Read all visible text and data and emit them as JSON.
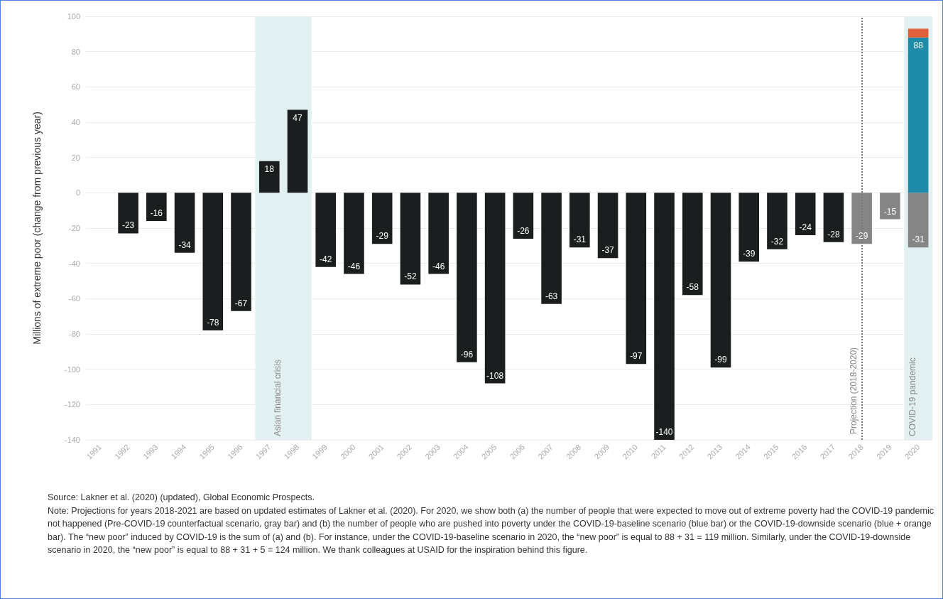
{
  "chart_data": {
    "type": "bar",
    "ylabel": "Millions of extreme poor (change from previous year)",
    "categories": [
      "1991",
      "1992",
      "1993",
      "1994",
      "1995",
      "1996",
      "1997",
      "1998",
      "1999",
      "2000",
      "2001",
      "2002",
      "2003",
      "2004",
      "2005",
      "2006",
      "2007",
      "2008",
      "2009",
      "2010",
      "2011",
      "2012",
      "2013",
      "2014",
      "2015",
      "2016",
      "2017",
      "2018",
      "2019",
      "2020"
    ],
    "series": [
      {
        "color": "#1b1e1e",
        "values": [
          null,
          -23,
          -16,
          -34,
          -78,
          -67,
          18,
          47,
          -42,
          -46,
          -29,
          -52,
          -46,
          -96,
          -108,
          -26,
          -63,
          -31,
          -37,
          -97,
          -140,
          -58,
          -99,
          -39,
          -32,
          -24,
          -28,
          null,
          null,
          null
        ],
        "value_labels": [
          null,
          "-23",
          "-16",
          "-34",
          "-78",
          "-67",
          "18",
          "47",
          "-42",
          "-46",
          "-29",
          "-52",
          "-46",
          "-96",
          "-108",
          "-26",
          "-63",
          "-31",
          "-37",
          "-97",
          "-140",
          "-58",
          "-99",
          "-39",
          "-32",
          "-24",
          "-28",
          null,
          null,
          null
        ]
      },
      {
        "color": "#858585",
        "values": [
          null,
          null,
          null,
          null,
          null,
          null,
          null,
          null,
          null,
          null,
          null,
          null,
          null,
          null,
          null,
          null,
          null,
          null,
          null,
          null,
          null,
          null,
          null,
          null,
          null,
          null,
          null,
          -29,
          -15,
          -31
        ],
        "value_labels": [
          null,
          null,
          null,
          null,
          null,
          null,
          null,
          null,
          null,
          null,
          null,
          null,
          null,
          null,
          null,
          null,
          null,
          null,
          null,
          null,
          null,
          null,
          null,
          null,
          null,
          null,
          null,
          "-29",
          "-15",
          "-31"
        ]
      },
      {
        "color": "#1e8bab",
        "values": [
          null,
          null,
          null,
          null,
          null,
          null,
          null,
          null,
          null,
          null,
          null,
          null,
          null,
          null,
          null,
          null,
          null,
          null,
          null,
          null,
          null,
          null,
          null,
          null,
          null,
          null,
          null,
          null,
          null,
          88
        ],
        "value_labels": [
          null,
          null,
          null,
          null,
          null,
          null,
          null,
          null,
          null,
          null,
          null,
          null,
          null,
          null,
          null,
          null,
          null,
          null,
          null,
          null,
          null,
          null,
          null,
          null,
          null,
          null,
          null,
          null,
          null,
          "88"
        ]
      },
      {
        "color": "#e0603a",
        "values": [
          null,
          null,
          null,
          null,
          null,
          null,
          null,
          null,
          null,
          null,
          null,
          null,
          null,
          null,
          null,
          null,
          null,
          null,
          null,
          null,
          null,
          null,
          null,
          null,
          null,
          null,
          null,
          null,
          null,
          5
        ]
      }
    ],
    "stacked": true,
    "ylim": [
      -140,
      100
    ],
    "yticks": [
      -140,
      -120,
      -100,
      -80,
      -60,
      -40,
      -20,
      0,
      20,
      40,
      60,
      80,
      100
    ],
    "grid": "y",
    "bands": [
      {
        "axis": "x",
        "from": "1997",
        "to": "1998",
        "label": "Asian financial crisis",
        "color": "#e3f0f2"
      },
      {
        "axis": "x",
        "from": "2020",
        "to": "2020",
        "label": "COVID-19 pandemic",
        "color": "#e3f0f2"
      }
    ],
    "ref_lines": [
      {
        "axis": "x",
        "value": "2018",
        "label": "Projection (2018-2020)",
        "color": "#777777",
        "line_style": "dotted"
      }
    ],
    "annotations": [
      "Source: Lakner et al. (2020) (updated), Global Economic Prospects.",
      "Note: Projections for years 2018-2021 are based on updated estimates of Lakner et al. (2020). For 2020, we show both (a) the number of people that were expected to move out of extreme poverty had the COVID-19 pandemic not happened (Pre-COVID-19 counterfactual scenario, gray bar) and (b) the number of people who are pushed into poverty under the COVID-19-baseline scenario (blue bar) or the COVID-19-downside scenario (blue + orange bar). The “new poor” induced by COVID-19 is the sum of (a) and (b). For instance, under the COVID-19-baseline scenario in 2020, the “new poor” is equal to 88 + 31 = 119 million. Similarly, under the COVID-19-downside scenario in 2020, the “new poor” is equal to 88 + 31 + 5 = 124 million. We thank colleagues at USAID for the inspiration behind this figure."
    ]
  }
}
